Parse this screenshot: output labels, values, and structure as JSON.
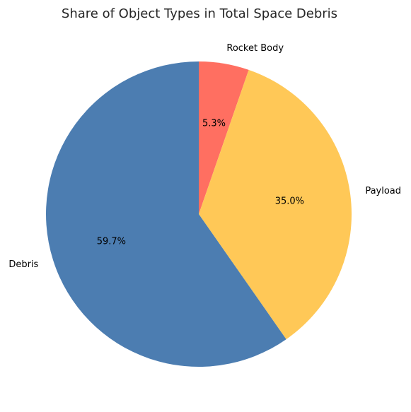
{
  "chart_data": {
    "type": "pie",
    "title": "Share of Object Types in Total Space Debris",
    "start_angle_deg": 90,
    "direction": "clockwise",
    "slices": [
      {
        "label": "Rocket Body",
        "value": 5.3,
        "pct_label": "5.3%",
        "color": "#FF6F61"
      },
      {
        "label": "Payload",
        "value": 35.0,
        "pct_label": "35.0%",
        "color": "#FFC857"
      },
      {
        "label": "Debris",
        "value": 59.7,
        "pct_label": "59.7%",
        "color": "#4C7DB1"
      }
    ]
  }
}
